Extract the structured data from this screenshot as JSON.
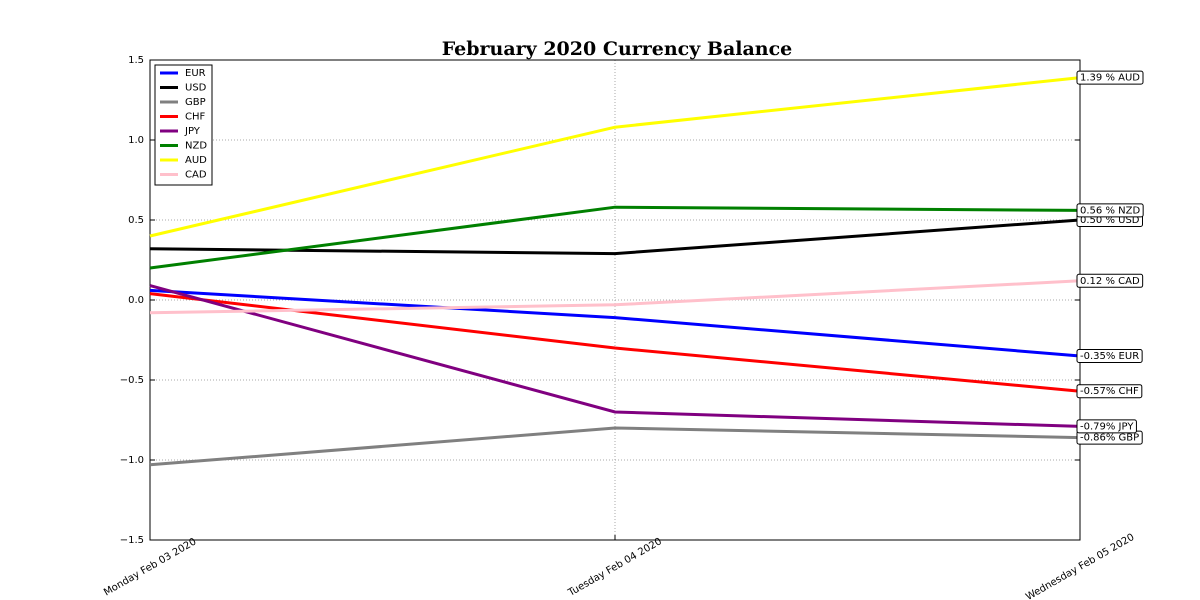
{
  "chart_data": {
    "type": "line",
    "title": "February 2020 Currency Balance",
    "categories": [
      "Monday Feb 03 2020",
      "Tuesday Feb 04 2020",
      "Wednesday Feb 05 2020"
    ],
    "series": [
      {
        "name": "EUR",
        "color": "#0000ff",
        "values": [
          0.06,
          -0.11,
          -0.35
        ],
        "value_labels": [
          null,
          null,
          "-0.35% EUR"
        ]
      },
      {
        "name": "USD",
        "color": "#000000",
        "values": [
          0.32,
          0.29,
          0.5
        ],
        "value_labels": [
          null,
          null,
          "0.50 % USD"
        ]
      },
      {
        "name": "GBP",
        "color": "#808080",
        "values": [
          -1.03,
          -0.8,
          -0.86
        ],
        "value_labels": [
          null,
          null,
          "-0.86% GBP"
        ]
      },
      {
        "name": "CHF",
        "color": "#ff0000",
        "values": [
          0.04,
          -0.3,
          -0.57
        ],
        "value_labels": [
          null,
          null,
          "-0.57% CHF"
        ]
      },
      {
        "name": "JPY",
        "color": "#800080",
        "values": [
          0.09,
          -0.7,
          -0.79
        ],
        "value_labels": [
          null,
          null,
          "-0.79% JPY"
        ]
      },
      {
        "name": "NZD",
        "color": "#008000",
        "values": [
          0.2,
          0.58,
          0.56
        ],
        "value_labels": [
          null,
          null,
          "0.56 % NZD"
        ]
      },
      {
        "name": "AUD",
        "color": "#ffff00",
        "values": [
          0.4,
          1.08,
          1.39
        ],
        "value_labels": [
          null,
          null,
          "1.39 % AUD"
        ]
      },
      {
        "name": "CAD",
        "color": "#ffc0cb",
        "values": [
          -0.08,
          -0.03,
          0.12
        ],
        "value_labels": [
          null,
          null,
          "0.12 % CAD"
        ]
      }
    ],
    "ylim": [
      -1.5,
      1.5
    ],
    "yticks": [
      {
        "value": -1.5,
        "label": "−1.5"
      },
      {
        "value": -1,
        "label": "−1.0"
      },
      {
        "value": -0.5,
        "label": "−0.5"
      },
      {
        "value": 0,
        "label": "0.0"
      },
      0.5,
      {
        "value": 1,
        "label": "1.0"
      },
      1.5
    ],
    "grid": true,
    "legend": "upper left"
  }
}
